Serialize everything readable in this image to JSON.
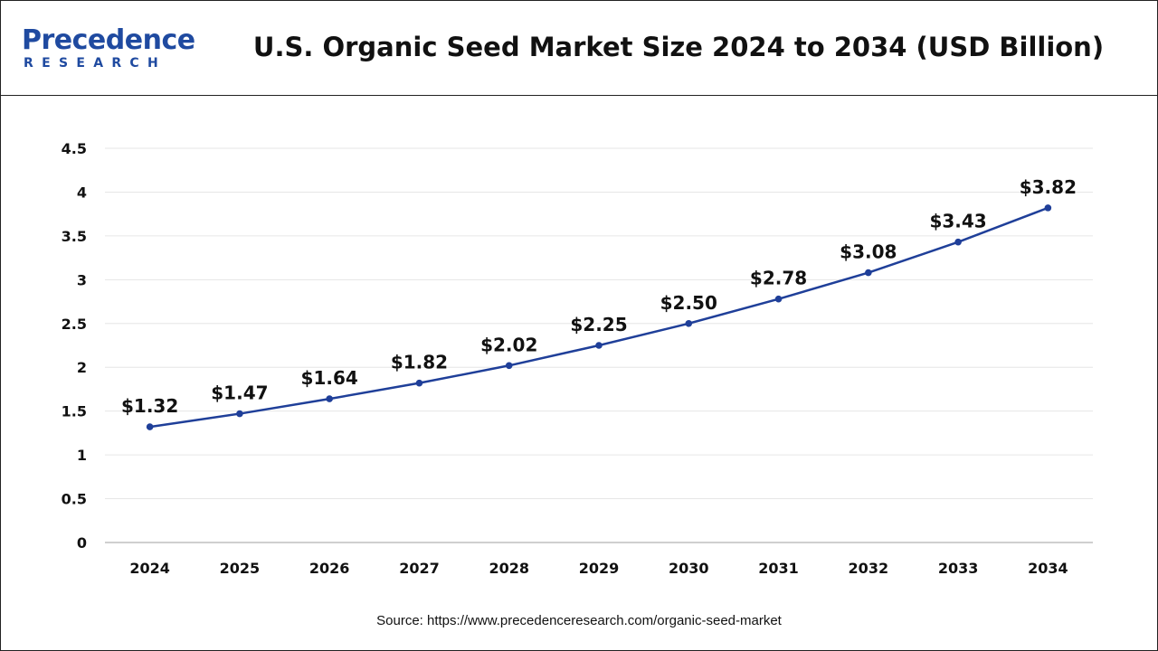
{
  "header": {
    "logo_word": "Precedence",
    "logo_sub": "RESEARCH",
    "title": "U.S. Organic Seed Market Size 2024 to 2034 (USD Billion)"
  },
  "source": "Source: https://www.precedenceresearch.com/organic-seed-market",
  "colors": {
    "line": "#1f3f99",
    "brand": "#1f4aa0",
    "grid": "#e6e6e6"
  },
  "chart_data": {
    "type": "line",
    "title": "U.S. Organic Seed Market Size 2024 to 2034 (USD Billion)",
    "categories": [
      "2024",
      "2025",
      "2026",
      "2027",
      "2028",
      "2029",
      "2030",
      "2031",
      "2032",
      "2033",
      "2034"
    ],
    "values": [
      1.32,
      1.47,
      1.64,
      1.82,
      2.02,
      2.25,
      2.5,
      2.78,
      3.08,
      3.43,
      3.82
    ],
    "data_labels": [
      "$1.32",
      "$1.47",
      "$1.64",
      "$1.82",
      "$2.02",
      "$2.25",
      "$2.50",
      "$2.78",
      "$3.08",
      "$3.43",
      "$3.82"
    ],
    "ylim": [
      0,
      4.5
    ],
    "yticks": [
      "0",
      "0.5",
      "1",
      "1.5",
      "2",
      "2.5",
      "3",
      "3.5",
      "4",
      "4.5"
    ],
    "grid": true,
    "legend": "none",
    "xlabel": "",
    "ylabel": ""
  }
}
